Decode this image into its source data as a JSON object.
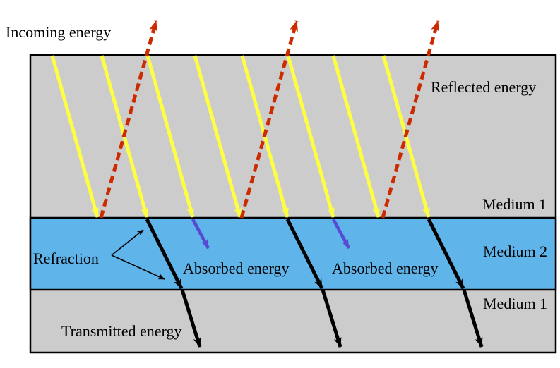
{
  "labels": {
    "incoming": "Incoming energy",
    "reflected": "Reflected energy",
    "medium1_top": "Medium 1",
    "medium2": "Medium 2",
    "medium1_bottom": "Medium 1",
    "refraction": "Refraction",
    "absorbed_1": "Absorbed energy",
    "absorbed_2": "Absorbed energy",
    "transmitted": "Transmitted energy"
  },
  "colors": {
    "background": "#ffffff",
    "medium1_fill": "#cccccc",
    "medium2_fill": "#5fb4ea",
    "border": "#000000",
    "incoming_ray": "#ffff42",
    "reflected_ray": "#cc2b00",
    "transmitted_ray": "#000000",
    "absorbed_ray": "#564bd2",
    "text": "#000000"
  },
  "diagram": {
    "description": "Incoming energy rays strike the Medium 1 / Medium 2 boundary; some energy is reflected, some refracted then absorbed in Medium 2, some transmitted into lower Medium 1.",
    "ray_counts": {
      "incoming": 8,
      "reflected": 3,
      "refracted": 3,
      "transmitted": 3,
      "absorbed": 2,
      "refraction_pointers": 2
    },
    "rays": {
      "incoming": [
        [
          74,
          79,
          138,
          308
        ],
        [
          144,
          79,
          208,
          308
        ],
        [
          209,
          79,
          273,
          308
        ],
        [
          276,
          79,
          340,
          308
        ],
        [
          343,
          79,
          407,
          308
        ],
        [
          408,
          79,
          472,
          308
        ],
        [
          472,
          79,
          536,
          308
        ],
        [
          543,
          79,
          607,
          308
        ]
      ],
      "reflected": [
        [
          143,
          309,
          221,
          30
        ],
        [
          342,
          309,
          420,
          30
        ],
        [
          542,
          309,
          620,
          30
        ]
      ],
      "refracted": [
        [
          208,
          311,
          257,
          409
        ],
        [
          407,
          311,
          456,
          409
        ],
        [
          607,
          311,
          656,
          409
        ]
      ],
      "transmitted": [
        [
          258,
          411,
          283,
          492
        ],
        [
          457,
          411,
          482,
          492
        ],
        [
          657,
          411,
          682,
          492
        ]
      ],
      "absorbed": [
        [
          273,
          311,
          295,
          352
        ],
        [
          472,
          311,
          494,
          352
        ]
      ],
      "refraction_pointers": [
        [
          158,
          362,
          203,
          326
        ],
        [
          158,
          362,
          233,
          396
        ]
      ]
    }
  }
}
